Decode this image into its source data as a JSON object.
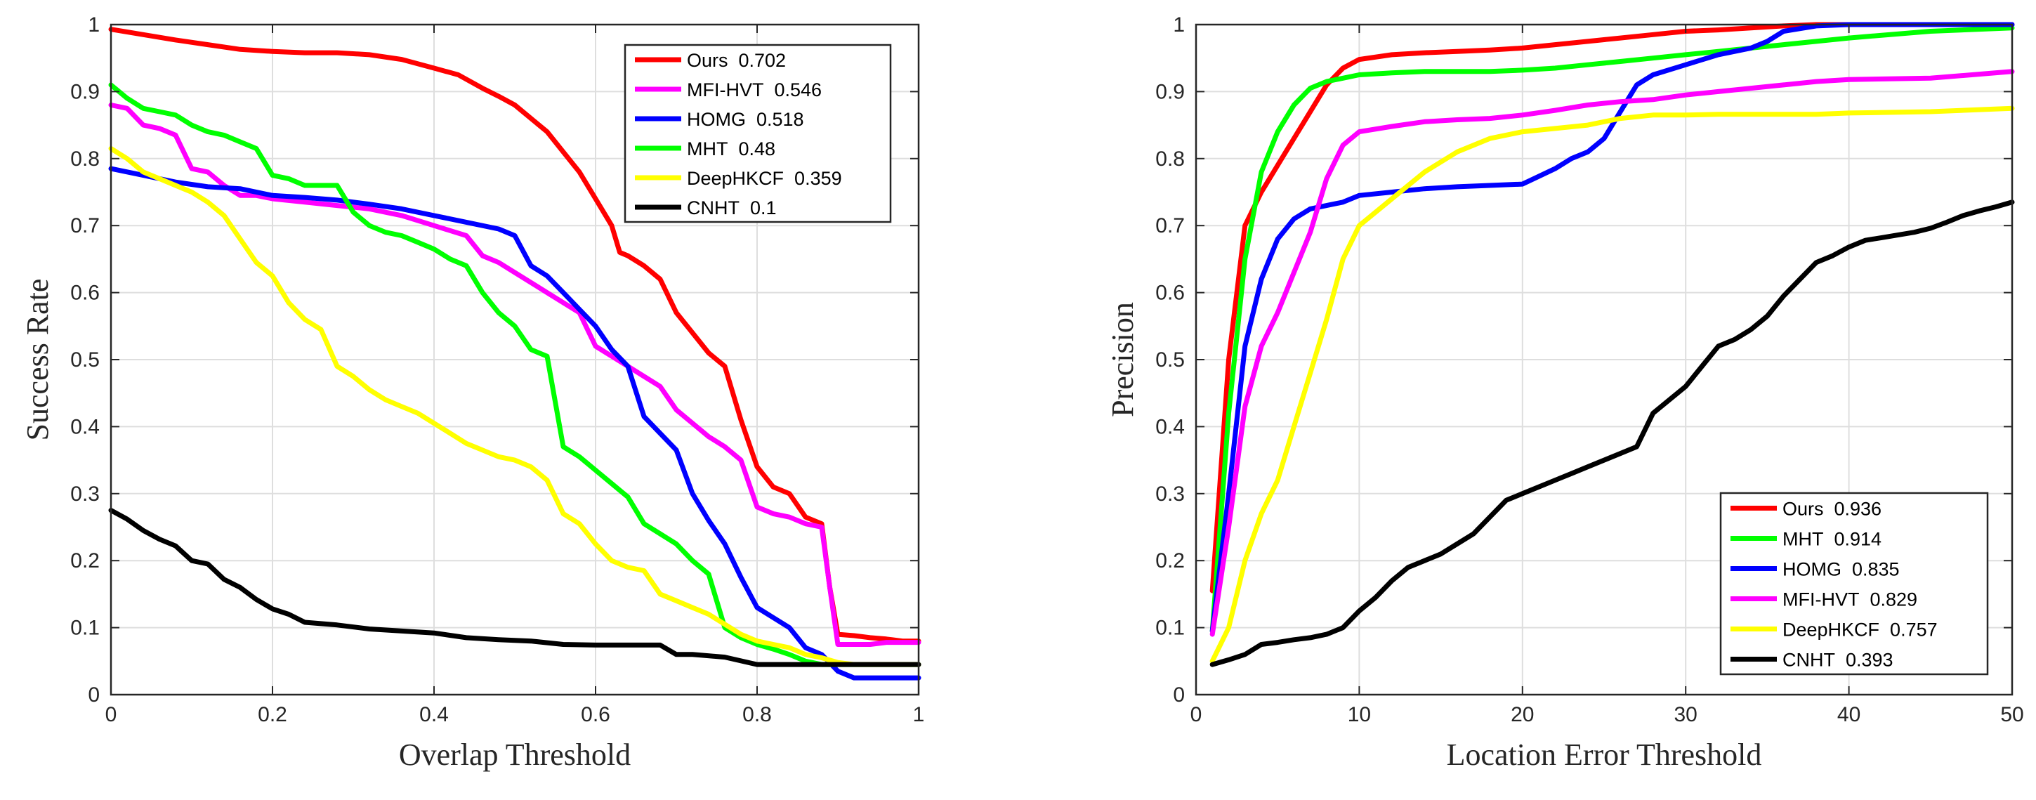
{
  "chart_data": [
    {
      "type": "line",
      "title": "",
      "xlabel": "Overlap Threshold",
      "ylabel": "Success Rate",
      "xlim": [
        0,
        1
      ],
      "ylim": [
        0,
        1
      ],
      "xticks": [
        "0",
        "0.2",
        "0.4",
        "0.6",
        "0.8",
        "1"
      ],
      "yticks": [
        "0",
        "0.1",
        "0.2",
        "0.3",
        "0.4",
        "0.5",
        "0.6",
        "0.7",
        "0.8",
        "0.9",
        "1"
      ],
      "grid": true,
      "legend_position": "top-right",
      "series": [
        {
          "name": "Ours",
          "score": "0.702",
          "color": "#ff0000",
          "x": [
            0,
            0.04,
            0.08,
            0.12,
            0.16,
            0.2,
            0.24,
            0.28,
            0.32,
            0.36,
            0.4,
            0.43,
            0.46,
            0.48,
            0.5,
            0.52,
            0.54,
            0.56,
            0.58,
            0.6,
            0.62,
            0.63,
            0.64,
            0.66,
            0.68,
            0.7,
            0.72,
            0.74,
            0.76,
            0.78,
            0.8,
            0.82,
            0.84,
            0.86,
            0.88,
            0.89,
            0.9,
            0.92,
            0.94,
            0.96,
            0.98,
            1
          ],
          "y": [
            0.993,
            0.985,
            0.977,
            0.97,
            0.963,
            0.96,
            0.958,
            0.958,
            0.955,
            0.948,
            0.935,
            0.925,
            0.905,
            0.893,
            0.88,
            0.86,
            0.84,
            0.81,
            0.78,
            0.74,
            0.7,
            0.66,
            0.655,
            0.64,
            0.62,
            0.57,
            0.54,
            0.51,
            0.49,
            0.41,
            0.34,
            0.31,
            0.3,
            0.265,
            0.255,
            0.16,
            0.09,
            0.088,
            0.085,
            0.083,
            0.08,
            0.08
          ]
        },
        {
          "name": "MFI-HVT",
          "score": "0.546",
          "color": "#ff00ff",
          "x": [
            0,
            0.02,
            0.04,
            0.06,
            0.08,
            0.1,
            0.12,
            0.14,
            0.16,
            0.18,
            0.2,
            0.24,
            0.28,
            0.32,
            0.36,
            0.4,
            0.44,
            0.46,
            0.48,
            0.5,
            0.54,
            0.58,
            0.6,
            0.62,
            0.64,
            0.66,
            0.68,
            0.7,
            0.72,
            0.74,
            0.76,
            0.78,
            0.8,
            0.82,
            0.84,
            0.86,
            0.88,
            0.89,
            0.9,
            0.92,
            0.94,
            0.96,
            0.98,
            1
          ],
          "y": [
            0.88,
            0.875,
            0.85,
            0.845,
            0.835,
            0.785,
            0.78,
            0.76,
            0.745,
            0.745,
            0.74,
            0.735,
            0.73,
            0.725,
            0.715,
            0.7,
            0.685,
            0.655,
            0.645,
            0.63,
            0.6,
            0.57,
            0.52,
            0.505,
            0.49,
            0.475,
            0.46,
            0.425,
            0.405,
            0.385,
            0.37,
            0.35,
            0.28,
            0.27,
            0.265,
            0.255,
            0.25,
            0.16,
            0.075,
            0.075,
            0.075,
            0.078,
            0.078,
            0.078
          ]
        },
        {
          "name": "HOMG",
          "score": "0.518",
          "color": "#0000ff",
          "x": [
            0,
            0.04,
            0.08,
            0.12,
            0.16,
            0.2,
            0.24,
            0.28,
            0.32,
            0.36,
            0.4,
            0.44,
            0.48,
            0.5,
            0.52,
            0.54,
            0.56,
            0.58,
            0.6,
            0.62,
            0.64,
            0.66,
            0.68,
            0.7,
            0.72,
            0.74,
            0.76,
            0.78,
            0.8,
            0.82,
            0.84,
            0.86,
            0.88,
            0.9,
            0.92,
            0.94,
            0.96,
            0.98,
            1
          ],
          "y": [
            0.785,
            0.775,
            0.765,
            0.758,
            0.755,
            0.745,
            0.742,
            0.738,
            0.732,
            0.725,
            0.715,
            0.705,
            0.695,
            0.685,
            0.64,
            0.625,
            0.6,
            0.575,
            0.55,
            0.515,
            0.49,
            0.415,
            0.39,
            0.365,
            0.3,
            0.26,
            0.225,
            0.175,
            0.13,
            0.115,
            0.1,
            0.07,
            0.06,
            0.035,
            0.025,
            0.025,
            0.025,
            0.025,
            0.025
          ]
        },
        {
          "name": "MHT",
          "score": "0.48",
          "color": "#00ff00",
          "x": [
            0,
            0.02,
            0.04,
            0.06,
            0.08,
            0.1,
            0.12,
            0.14,
            0.16,
            0.18,
            0.2,
            0.22,
            0.24,
            0.28,
            0.3,
            0.32,
            0.34,
            0.36,
            0.38,
            0.4,
            0.42,
            0.44,
            0.46,
            0.48,
            0.5,
            0.52,
            0.54,
            0.56,
            0.58,
            0.6,
            0.62,
            0.64,
            0.66,
            0.68,
            0.7,
            0.72,
            0.74,
            0.76,
            0.78,
            0.8,
            0.82,
            0.84,
            0.86,
            0.88,
            0.9,
            0.92,
            0.94,
            0.96,
            0.98,
            1
          ],
          "y": [
            0.91,
            0.89,
            0.875,
            0.87,
            0.865,
            0.85,
            0.84,
            0.835,
            0.825,
            0.815,
            0.775,
            0.77,
            0.76,
            0.76,
            0.72,
            0.7,
            0.69,
            0.685,
            0.675,
            0.665,
            0.65,
            0.64,
            0.6,
            0.57,
            0.55,
            0.515,
            0.505,
            0.37,
            0.355,
            0.335,
            0.315,
            0.295,
            0.255,
            0.24,
            0.225,
            0.2,
            0.18,
            0.1,
            0.085,
            0.075,
            0.068,
            0.06,
            0.05,
            0.045,
            0.045,
            0.045,
            0.045,
            0.045,
            0.045,
            0.045
          ]
        },
        {
          "name": "DeepHKCF",
          "score": "0.359",
          "color": "#ffff00",
          "x": [
            0,
            0.02,
            0.04,
            0.06,
            0.08,
            0.1,
            0.12,
            0.14,
            0.16,
            0.18,
            0.2,
            0.22,
            0.24,
            0.26,
            0.28,
            0.3,
            0.32,
            0.34,
            0.36,
            0.38,
            0.4,
            0.42,
            0.44,
            0.46,
            0.48,
            0.5,
            0.52,
            0.54,
            0.56,
            0.58,
            0.6,
            0.62,
            0.64,
            0.66,
            0.68,
            0.7,
            0.72,
            0.74,
            0.76,
            0.78,
            0.8,
            0.82,
            0.84,
            0.86,
            0.88,
            0.9,
            0.92,
            0.94,
            0.96,
            0.98,
            1
          ],
          "y": [
            0.815,
            0.8,
            0.78,
            0.77,
            0.76,
            0.75,
            0.735,
            0.715,
            0.68,
            0.645,
            0.625,
            0.585,
            0.56,
            0.545,
            0.49,
            0.475,
            0.455,
            0.44,
            0.43,
            0.42,
            0.405,
            0.39,
            0.375,
            0.365,
            0.355,
            0.35,
            0.34,
            0.32,
            0.27,
            0.255,
            0.225,
            0.2,
            0.19,
            0.185,
            0.15,
            0.14,
            0.13,
            0.12,
            0.105,
            0.09,
            0.08,
            0.075,
            0.07,
            0.06,
            0.055,
            0.048,
            0.045,
            0.045,
            0.045,
            0.045,
            0.045
          ]
        },
        {
          "name": "CNHT",
          "score": "0.1",
          "color": "#000000",
          "x": [
            0,
            0.02,
            0.04,
            0.06,
            0.08,
            0.1,
            0.12,
            0.14,
            0.16,
            0.18,
            0.2,
            0.22,
            0.24,
            0.28,
            0.32,
            0.36,
            0.4,
            0.44,
            0.48,
            0.52,
            0.56,
            0.6,
            0.64,
            0.68,
            0.7,
            0.72,
            0.76,
            0.8,
            0.84,
            0.88,
            0.92,
            0.96,
            1
          ],
          "y": [
            0.275,
            0.262,
            0.245,
            0.232,
            0.222,
            0.2,
            0.195,
            0.172,
            0.16,
            0.142,
            0.128,
            0.12,
            0.108,
            0.104,
            0.098,
            0.095,
            0.092,
            0.085,
            0.082,
            0.08,
            0.075,
            0.074,
            0.074,
            0.074,
            0.06,
            0.06,
            0.056,
            0.045,
            0.045,
            0.045,
            0.045,
            0.045,
            0.045
          ]
        }
      ]
    },
    {
      "type": "line",
      "title": "",
      "xlabel": "Location Error Threshold",
      "ylabel": "Precision",
      "xlim": [
        0,
        50
      ],
      "ylim": [
        0,
        1
      ],
      "xticks": [
        "0",
        "10",
        "20",
        "30",
        "40",
        "50"
      ],
      "yticks": [
        "0",
        "0.1",
        "0.2",
        "0.3",
        "0.4",
        "0.5",
        "0.6",
        "0.7",
        "0.8",
        "0.9",
        "1"
      ],
      "grid": true,
      "legend_position": "bottom-right",
      "series": [
        {
          "name": "Ours",
          "score": "0.936",
          "color": "#ff0000",
          "x": [
            1,
            2,
            3,
            4,
            5,
            6,
            7,
            8,
            9,
            10,
            12,
            14,
            16,
            18,
            20,
            22,
            24,
            26,
            28,
            30,
            32,
            34,
            36,
            38,
            40,
            45,
            50
          ],
          "y": [
            0.155,
            0.5,
            0.7,
            0.75,
            0.79,
            0.83,
            0.87,
            0.91,
            0.935,
            0.948,
            0.955,
            0.958,
            0.96,
            0.962,
            0.965,
            0.97,
            0.975,
            0.98,
            0.985,
            0.99,
            0.992,
            0.995,
            0.998,
            1,
            1,
            1,
            1
          ]
        },
        {
          "name": "MHT",
          "score": "0.914",
          "color": "#00ff00",
          "x": [
            1,
            2,
            3,
            4,
            5,
            6,
            7,
            8,
            9,
            10,
            12,
            14,
            16,
            18,
            20,
            22,
            24,
            26,
            28,
            30,
            32,
            34,
            36,
            38,
            40,
            45,
            50
          ],
          "y": [
            0.095,
            0.42,
            0.65,
            0.78,
            0.84,
            0.88,
            0.905,
            0.915,
            0.92,
            0.925,
            0.928,
            0.93,
            0.93,
            0.93,
            0.932,
            0.935,
            0.94,
            0.945,
            0.95,
            0.955,
            0.96,
            0.965,
            0.97,
            0.975,
            0.98,
            0.99,
            0.995
          ]
        },
        {
          "name": "HOMG",
          "score": "0.835",
          "color": "#0000ff",
          "x": [
            1,
            2,
            3,
            4,
            5,
            6,
            7,
            8,
            9,
            10,
            12,
            14,
            16,
            18,
            20,
            22,
            23,
            24,
            25,
            26,
            27,
            28,
            30,
            32,
            34,
            35,
            36,
            38,
            40,
            45,
            50
          ],
          "y": [
            0.095,
            0.3,
            0.52,
            0.62,
            0.68,
            0.71,
            0.725,
            0.73,
            0.735,
            0.745,
            0.75,
            0.755,
            0.758,
            0.76,
            0.762,
            0.785,
            0.8,
            0.81,
            0.83,
            0.87,
            0.91,
            0.925,
            0.94,
            0.955,
            0.965,
            0.975,
            0.99,
            0.998,
            1,
            1,
            1
          ]
        },
        {
          "name": "MFI-HVT",
          "score": "0.829",
          "color": "#ff00ff",
          "x": [
            1,
            2,
            3,
            4,
            5,
            6,
            7,
            8,
            9,
            10,
            12,
            14,
            16,
            18,
            20,
            22,
            24,
            26,
            28,
            30,
            32,
            34,
            36,
            38,
            40,
            45,
            50
          ],
          "y": [
            0.09,
            0.25,
            0.43,
            0.52,
            0.57,
            0.63,
            0.69,
            0.77,
            0.82,
            0.84,
            0.848,
            0.855,
            0.858,
            0.86,
            0.865,
            0.872,
            0.88,
            0.885,
            0.888,
            0.895,
            0.9,
            0.905,
            0.91,
            0.915,
            0.918,
            0.92,
            0.93
          ]
        },
        {
          "name": "DeepHKCF",
          "score": "0.757",
          "color": "#ffff00",
          "x": [
            1,
            2,
            3,
            4,
            5,
            6,
            7,
            8,
            9,
            10,
            12,
            14,
            16,
            18,
            20,
            22,
            24,
            26,
            28,
            30,
            32,
            34,
            36,
            38,
            40,
            45,
            50
          ],
          "y": [
            0.05,
            0.1,
            0.2,
            0.27,
            0.32,
            0.4,
            0.48,
            0.56,
            0.65,
            0.7,
            0.74,
            0.78,
            0.81,
            0.83,
            0.84,
            0.845,
            0.85,
            0.86,
            0.865,
            0.865,
            0.866,
            0.866,
            0.866,
            0.866,
            0.868,
            0.87,
            0.875
          ]
        },
        {
          "name": "CNHT",
          "score": "0.393",
          "color": "#000000",
          "x": [
            1,
            2,
            3,
            4,
            5,
            6,
            7,
            8,
            9,
            10,
            11,
            12,
            13,
            14,
            15,
            16,
            17,
            18,
            19,
            20,
            21,
            22,
            23,
            24,
            25,
            26,
            27,
            28,
            29,
            30,
            31,
            32,
            33,
            34,
            35,
            36,
            37,
            38,
            39,
            40,
            41,
            42,
            43,
            44,
            45,
            46,
            47,
            48,
            49,
            50
          ],
          "y": [
            0.045,
            0.052,
            0.06,
            0.075,
            0.078,
            0.082,
            0.085,
            0.09,
            0.1,
            0.125,
            0.145,
            0.17,
            0.19,
            0.2,
            0.21,
            0.225,
            0.24,
            0.265,
            0.29,
            0.3,
            0.31,
            0.32,
            0.33,
            0.34,
            0.35,
            0.36,
            0.37,
            0.42,
            0.44,
            0.46,
            0.49,
            0.52,
            0.53,
            0.545,
            0.565,
            0.595,
            0.62,
            0.645,
            0.655,
            0.668,
            0.678,
            0.682,
            0.686,
            0.69,
            0.696,
            0.705,
            0.715,
            0.722,
            0.728,
            0.735
          ]
        }
      ]
    }
  ]
}
